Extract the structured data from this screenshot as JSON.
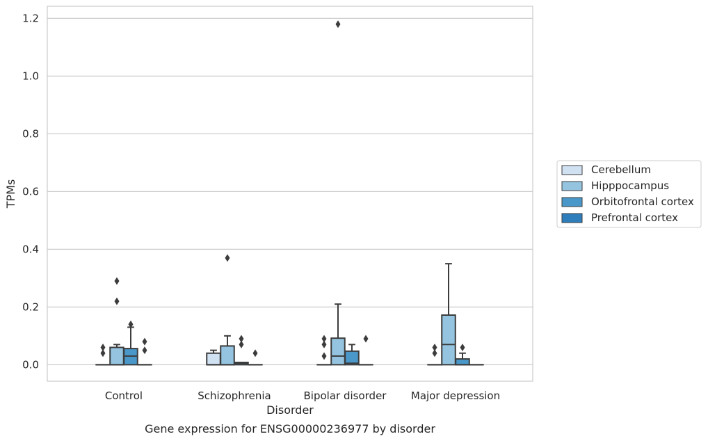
{
  "chart_data": {
    "type": "box",
    "title": "",
    "caption": "Gene expression for ENSG00000236977 by disorder",
    "xlabel": "Disorder",
    "ylabel": "TPMs",
    "ylim": [
      -0.057,
      1.242
    ],
    "yticks": [
      0.0,
      0.2,
      0.4,
      0.6,
      0.8,
      1.0,
      1.2
    ],
    "ytick_labels": [
      "0.0",
      "0.2",
      "0.4",
      "0.6",
      "0.8",
      "1.0",
      "1.2"
    ],
    "grid": "horizontal",
    "legend_position": "right",
    "categories": [
      "Control",
      "Schizophrenia",
      "Bipolar disorder",
      "Major depression"
    ],
    "series": [
      {
        "name": "Cerebellum",
        "color": "#d0e1f2",
        "boxes": [
          {
            "q1": 0.0,
            "median": 0.0,
            "q3": 0.0,
            "whisker_low": 0.0,
            "whisker_high": 0.0,
            "outliers": [
              0.04,
              0.06
            ]
          },
          {
            "q1": 0.0,
            "median": 0.0,
            "q3": 0.04,
            "whisker_low": 0.0,
            "whisker_high": 0.05,
            "outliers": []
          },
          {
            "q1": 0.0,
            "median": 0.0,
            "q3": 0.0,
            "whisker_low": 0.0,
            "whisker_high": 0.0,
            "outliers": [
              0.03,
              0.07,
              0.09
            ]
          },
          {
            "q1": 0.0,
            "median": 0.0,
            "q3": 0.0,
            "whisker_low": 0.0,
            "whisker_high": 0.0,
            "outliers": [
              0.04,
              0.06
            ]
          }
        ]
      },
      {
        "name": "Hipppocampus",
        "color": "#94c4df",
        "boxes": [
          {
            "q1": 0.0,
            "median": 0.0,
            "q3": 0.06,
            "whisker_low": 0.0,
            "whisker_high": 0.07,
            "outliers": [
              0.22,
              0.29
            ]
          },
          {
            "q1": 0.0,
            "median": 0.0,
            "q3": 0.065,
            "whisker_low": 0.0,
            "whisker_high": 0.1,
            "outliers": [
              0.37
            ]
          },
          {
            "q1": 0.0,
            "median": 0.03,
            "q3": 0.092,
            "whisker_low": 0.0,
            "whisker_high": 0.21,
            "outliers": [
              1.18
            ]
          },
          {
            "q1": 0.0,
            "median": 0.07,
            "q3": 0.172,
            "whisker_low": 0.0,
            "whisker_high": 0.35,
            "outliers": []
          }
        ]
      },
      {
        "name": "Orbitofrontal cortex",
        "color": "#4a98c9",
        "boxes": [
          {
            "q1": 0.0,
            "median": 0.03,
            "q3": 0.056,
            "whisker_low": 0.0,
            "whisker_high": 0.13,
            "outliers": [
              0.14
            ]
          },
          {
            "q1": 0.0,
            "median": 0.005,
            "q3": 0.008,
            "whisker_low": 0.0,
            "whisker_high": 0.008,
            "outliers": [
              0.07,
              0.09
            ]
          },
          {
            "q1": 0.0,
            "median": 0.005,
            "q3": 0.047,
            "whisker_low": 0.0,
            "whisker_high": 0.07,
            "outliers": []
          },
          {
            "q1": 0.0,
            "median": 0.0,
            "q3": 0.02,
            "whisker_low": 0.0,
            "whisker_high": 0.04,
            "outliers": [
              0.06
            ]
          }
        ]
      },
      {
        "name": "Prefrontal cortex",
        "color": "#2e7ebc",
        "boxes": [
          {
            "q1": 0.0,
            "median": 0.0,
            "q3": 0.0,
            "whisker_low": 0.0,
            "whisker_high": 0.0,
            "outliers": [
              0.05,
              0.08
            ]
          },
          {
            "q1": 0.0,
            "median": 0.0,
            "q3": 0.0,
            "whisker_low": 0.0,
            "whisker_high": 0.0,
            "outliers": [
              0.04
            ]
          },
          {
            "q1": 0.0,
            "median": 0.0,
            "q3": 0.0,
            "whisker_low": 0.0,
            "whisker_high": 0.0,
            "outliers": [
              0.09
            ]
          },
          {
            "q1": 0.0,
            "median": 0.0,
            "q3": 0.0,
            "whisker_low": 0.0,
            "whisker_high": 0.0,
            "outliers": []
          }
        ]
      }
    ]
  }
}
